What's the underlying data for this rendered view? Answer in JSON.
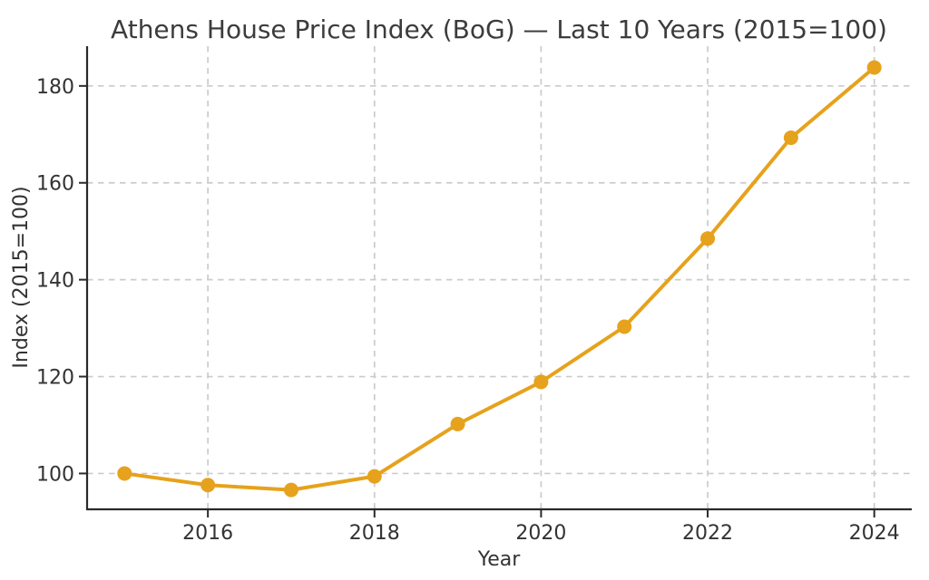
{
  "figure": {
    "background_color": "#ffffff"
  },
  "chart_data": {
    "type": "line",
    "title": "Athens House Price Index (BoG) — Last 10 Years (2015=100)",
    "xlabel": "Year",
    "ylabel": "Index (2015=100)",
    "x": [
      2015,
      2016,
      2017,
      2018,
      2019,
      2020,
      2021,
      2022,
      2023,
      2024
    ],
    "series": [
      {
        "name": "Athens House Price Index",
        "values": [
          100.0,
          97.6,
          96.6,
          99.4,
          110.2,
          118.9,
          130.3,
          148.5,
          169.3,
          183.8
        ]
      }
    ],
    "xticks": [
      2016,
      2018,
      2020,
      2022,
      2024
    ],
    "yticks": [
      100,
      120,
      140,
      160,
      180
    ],
    "xlim": [
      2014.55,
      2024.45
    ],
    "ylim": [
      92.6,
      188.2
    ],
    "grid": true,
    "grid_style": "dashed",
    "legend_position": "none",
    "line_color": "#E6A21C",
    "marker": "circle",
    "grid_color": "#cbcbcb",
    "axis_color": "#2a2a2a",
    "text_color": "#333333",
    "title_color": "#3c3c3c"
  }
}
